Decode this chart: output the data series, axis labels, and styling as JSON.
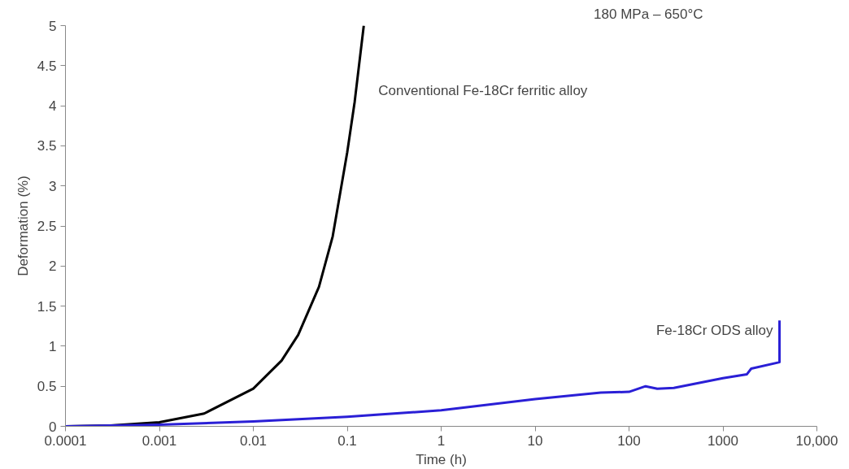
{
  "chart_data": {
    "type": "line",
    "xlabel": "Time (h)",
    "ylabel": "Deformation (%)",
    "annotations": [
      "180 MPa – 650°C"
    ],
    "log": "x",
    "grid": false,
    "marker": "none",
    "line_style": "solid",
    "xlim": [
      0.0001,
      10000
    ],
    "xticks": [
      0.0001,
      0.001,
      0.01,
      0.1,
      1,
      10,
      100,
      1000,
      {
        "value": 10000,
        "label": "10,000"
      }
    ],
    "ylim": [
      0,
      5
    ],
    "yticks": [
      0,
      0.5,
      1,
      1.5,
      2,
      2.5,
      3,
      3.5,
      4,
      4.5,
      5
    ],
    "series": [
      {
        "name": "Conventional Fe-18Cr ferritic alloy",
        "color": "#000000",
        "x": [
          0.0001,
          0.0003,
          0.001,
          0.003,
          0.01,
          0.02,
          0.03,
          0.05,
          0.07,
          0.1,
          0.12,
          0.15
        ],
        "values": [
          0,
          0.01,
          0.05,
          0.16,
          0.47,
          0.82,
          1.14,
          1.74,
          2.37,
          3.42,
          4.05,
          5
        ]
      },
      {
        "name": "Fe-18Cr ODS alloy",
        "color": "#2a1fd6",
        "x": [
          0.0001,
          0.001,
          0.01,
          0.1,
          1,
          10,
          50,
          100,
          150,
          200,
          300,
          1000,
          1800,
          2000,
          4000,
          4000
        ],
        "values": [
          0,
          0.02,
          0.06,
          0.12,
          0.2,
          0.34,
          0.42,
          0.43,
          0.5,
          0.47,
          0.48,
          0.6,
          0.65,
          0.72,
          0.8,
          1.32
        ]
      }
    ]
  }
}
